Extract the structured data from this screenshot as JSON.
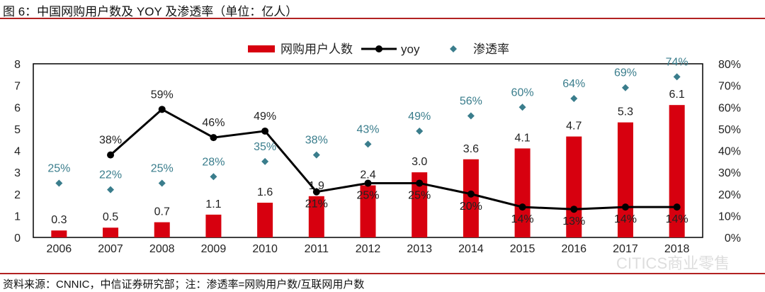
{
  "title": "图 6：中国网购用户数及 YOY 及渗透率（单位：亿人）",
  "source": "资料来源：CNNIC，中信证券研究部；注：渗透率=网购用户数/互联网用户数",
  "watermark": "CITICS商业零售",
  "chart_data": {
    "type": "bar+line+scatter",
    "categories": [
      "2006",
      "2007",
      "2008",
      "2009",
      "2010",
      "2011",
      "2012",
      "2013",
      "2014",
      "2015",
      "2016",
      "2017",
      "2018"
    ],
    "series": [
      {
        "name": "网购用户人数",
        "type": "bar",
        "axis": "left",
        "color": "#d7000f",
        "values": [
          0.3,
          0.5,
          0.7,
          1.1,
          1.6,
          1.9,
          2.4,
          3.0,
          3.6,
          4.1,
          4.7,
          5.3,
          6.1
        ],
        "labels": [
          "0.3",
          "0.5",
          "0.7",
          "1.1",
          "1.6",
          "1.9",
          "2.4",
          "3.0",
          "3.6",
          "4.1",
          "4.7",
          "5.3",
          "6.1"
        ]
      },
      {
        "name": "yoy",
        "type": "line",
        "axis": "right",
        "color": "#000000",
        "values": [
          null,
          38,
          59,
          46,
          49,
          21,
          25,
          25,
          20,
          14,
          13,
          14,
          14
        ]
      },
      {
        "name": "渗透率",
        "type": "scatter",
        "axis": "right",
        "color": "#3a7d8c",
        "values": [
          25,
          22,
          25,
          28,
          35,
          38,
          43,
          49,
          56,
          60,
          64,
          69,
          74
        ]
      }
    ],
    "bar_values_plotted": [
      0.32,
      0.45,
      0.7,
      1.05,
      1.6,
      1.9,
      2.4,
      3.0,
      3.6,
      4.1,
      4.65,
      5.3,
      6.1
    ],
    "left_axis": {
      "range": [
        0,
        8
      ],
      "ticks": [
        "0",
        "1",
        "2",
        "3",
        "4",
        "5",
        "6",
        "7",
        "8"
      ]
    },
    "right_axis": {
      "range": [
        0,
        80
      ],
      "ticks": [
        "0%",
        "10%",
        "20%",
        "30%",
        "40%",
        "50%",
        "60%",
        "70%",
        "80%"
      ]
    },
    "legend": "top-right",
    "grid": false
  }
}
